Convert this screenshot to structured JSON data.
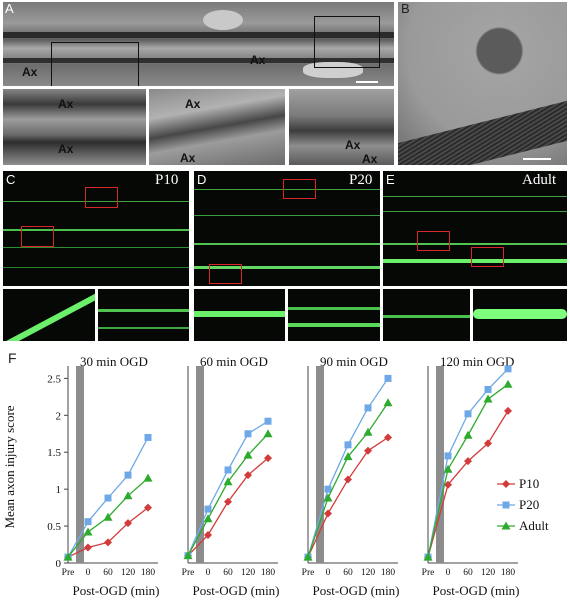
{
  "panels": {
    "a": "A",
    "b": "B",
    "c": "C",
    "d": "D",
    "e": "E",
    "f": "F"
  },
  "em_annotations": {
    "ax": "Ax"
  },
  "ages": {
    "c": "P10",
    "d": "P20",
    "e": "Adult"
  },
  "chart_data": [
    {
      "type": "line",
      "title": "30 min OGD",
      "x": [
        "Pre",
        "0",
        "60",
        "120",
        "180"
      ],
      "xlabel": "Post-OGD (min)",
      "ylabel": "Mean axon injury score",
      "ylim": [
        0,
        2.6
      ],
      "series": [
        {
          "name": "P10",
          "color": "#d33a3a",
          "values": [
            0.08,
            0.21,
            0.28,
            0.54,
            0.75
          ]
        },
        {
          "name": "P20",
          "color": "#6fa8e6",
          "values": [
            0.08,
            0.56,
            0.88,
            1.19,
            1.7
          ]
        },
        {
          "name": "Adult",
          "color": "#2eaa2e",
          "values": [
            0.08,
            0.42,
            0.62,
            0.91,
            1.15
          ]
        }
      ]
    },
    {
      "type": "line",
      "title": "60 min OGD",
      "x": [
        "Pre",
        "0",
        "60",
        "120",
        "180"
      ],
      "xlabel": "Post-OGD (min)",
      "ylim": [
        0,
        2.6
      ],
      "series": [
        {
          "name": "P10",
          "color": "#d33a3a",
          "values": [
            0.1,
            0.38,
            0.83,
            1.19,
            1.42
          ]
        },
        {
          "name": "P20",
          "color": "#6fa8e6",
          "values": [
            0.1,
            0.73,
            1.26,
            1.75,
            1.92
          ]
        },
        {
          "name": "Adult",
          "color": "#2eaa2e",
          "values": [
            0.1,
            0.6,
            1.1,
            1.46,
            1.75
          ]
        }
      ]
    },
    {
      "type": "line",
      "title": "90 min OGD",
      "x": [
        "Pre",
        "0",
        "60",
        "120",
        "180"
      ],
      "xlabel": "Post-OGD (min)",
      "ylim": [
        0,
        2.6
      ],
      "series": [
        {
          "name": "P10",
          "color": "#d33a3a",
          "values": [
            0.08,
            0.67,
            1.13,
            1.52,
            1.7
          ]
        },
        {
          "name": "P20",
          "color": "#6fa8e6",
          "values": [
            0.08,
            1.0,
            1.6,
            2.1,
            2.5
          ]
        },
        {
          "name": "Adult",
          "color": "#2eaa2e",
          "values": [
            0.08,
            0.88,
            1.44,
            1.77,
            2.17
          ]
        }
      ]
    },
    {
      "type": "line",
      "title": "120 min OGD",
      "x": [
        "Pre",
        "0",
        "60",
        "120",
        "180"
      ],
      "xlabel": "Post-OGD (min)",
      "ylim": [
        0,
        2.6
      ],
      "series": [
        {
          "name": "P10",
          "color": "#d33a3a",
          "values": [
            0.08,
            1.06,
            1.38,
            1.62,
            2.06
          ]
        },
        {
          "name": "P20",
          "color": "#6fa8e6",
          "values": [
            0.08,
            1.45,
            2.02,
            2.35,
            2.63
          ]
        },
        {
          "name": "Adult",
          "color": "#2eaa2e",
          "values": [
            0.08,
            1.27,
            1.73,
            2.22,
            2.42
          ]
        }
      ]
    }
  ],
  "y_ticks": [
    "0",
    "0.5",
    "1",
    "1.5",
    "2",
    "2.5"
  ],
  "legend": [
    {
      "name": "P10",
      "color": "#d33a3a",
      "marker": "diamond"
    },
    {
      "name": "P20",
      "color": "#6fa8e6",
      "marker": "square"
    },
    {
      "name": "Adult",
      "color": "#2eaa2e",
      "marker": "triangle"
    }
  ]
}
